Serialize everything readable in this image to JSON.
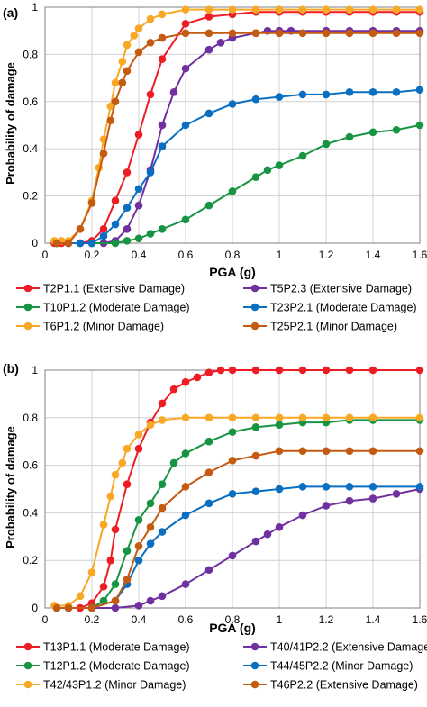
{
  "chart_data": [
    {
      "type": "line",
      "panel_label": "(a)",
      "xlabel": "PGA (g)",
      "ylabel": "Probability of damage",
      "xlim": [
        0,
        1.6
      ],
      "ylim": [
        0,
        1
      ],
      "x_ticks": [
        0,
        0.2,
        0.4,
        0.6,
        0.8,
        1,
        1.2,
        1.4,
        1.6
      ],
      "y_ticks": [
        0,
        0.2,
        0.4,
        0.6,
        0.8,
        1
      ],
      "grid": true,
      "legend_position": "bottom",
      "series": [
        {
          "name": "T2P1.1 (Extensive Damage)",
          "color": "#ee1c24",
          "x": [
            0.04,
            0.07,
            0.1,
            0.15,
            0.2,
            0.25,
            0.3,
            0.35,
            0.4,
            0.45,
            0.5,
            0.6,
            0.7,
            0.8,
            0.9,
            1.0,
            1.1,
            1.2,
            1.3,
            1.4,
            1.5,
            1.6
          ],
          "y": [
            0,
            0,
            0,
            0,
            0.01,
            0.06,
            0.18,
            0.3,
            0.46,
            0.63,
            0.78,
            0.93,
            0.96,
            0.97,
            0.98,
            0.98,
            0.98,
            0.98,
            0.98,
            0.98,
            0.98,
            0.98
          ]
        },
        {
          "name": "T5P2.3 (Extensive Damage)",
          "color": "#7030a0",
          "x": [
            0.05,
            0.1,
            0.15,
            0.2,
            0.25,
            0.3,
            0.35,
            0.4,
            0.45,
            0.5,
            0.55,
            0.6,
            0.7,
            0.75,
            0.8,
            0.9,
            0.95,
            1.0,
            1.05,
            1.2,
            1.3,
            1.4,
            1.5,
            1.6
          ],
          "y": [
            0,
            0,
            0,
            0,
            0,
            0.01,
            0.06,
            0.16,
            0.31,
            0.5,
            0.64,
            0.74,
            0.82,
            0.85,
            0.87,
            0.89,
            0.9,
            0.9,
            0.9,
            0.9,
            0.9,
            0.9,
            0.9,
            0.9
          ]
        },
        {
          "name": "T10P1.2 (Moderate Damage)",
          "color": "#179442",
          "x": [
            0.05,
            0.1,
            0.2,
            0.3,
            0.35,
            0.4,
            0.45,
            0.5,
            0.6,
            0.7,
            0.8,
            0.9,
            0.95,
            1.0,
            1.1,
            1.2,
            1.3,
            1.4,
            1.5,
            1.6
          ],
          "y": [
            0,
            0,
            0,
            0,
            0.01,
            0.02,
            0.04,
            0.06,
            0.1,
            0.16,
            0.22,
            0.28,
            0.31,
            0.33,
            0.37,
            0.42,
            0.45,
            0.47,
            0.48,
            0.5
          ]
        },
        {
          "name": "T23P2.1 (Moderate Damage)",
          "color": "#0b6fc1",
          "x": [
            0.05,
            0.1,
            0.15,
            0.2,
            0.25,
            0.3,
            0.35,
            0.4,
            0.45,
            0.5,
            0.6,
            0.7,
            0.8,
            0.9,
            1.0,
            1.1,
            1.2,
            1.3,
            1.4,
            1.5,
            1.6
          ],
          "y": [
            0,
            0,
            0,
            0,
            0.03,
            0.08,
            0.15,
            0.23,
            0.3,
            0.41,
            0.5,
            0.55,
            0.59,
            0.61,
            0.62,
            0.63,
            0.63,
            0.64,
            0.64,
            0.64,
            0.65
          ]
        },
        {
          "name": "T6P1.2 (Minor Damage)",
          "color": "#f9a825",
          "x": [
            0.04,
            0.07,
            0.1,
            0.15,
            0.2,
            0.23,
            0.25,
            0.28,
            0.3,
            0.33,
            0.35,
            0.38,
            0.4,
            0.45,
            0.5,
            0.6,
            0.7,
            0.8,
            0.9,
            1.0,
            1.1,
            1.2,
            1.3,
            1.4,
            1.5,
            1.6
          ],
          "y": [
            0.01,
            0.01,
            0.01,
            0.06,
            0.18,
            0.32,
            0.44,
            0.58,
            0.68,
            0.77,
            0.84,
            0.88,
            0.91,
            0.95,
            0.97,
            0.99,
            0.99,
            0.99,
            0.99,
            0.99,
            0.99,
            0.99,
            0.99,
            0.99,
            0.99,
            0.99
          ]
        },
        {
          "name": "T25P2.1 (Minor Damage)",
          "color": "#c55a11",
          "x": [
            0.05,
            0.1,
            0.15,
            0.2,
            0.25,
            0.28,
            0.3,
            0.33,
            0.35,
            0.4,
            0.45,
            0.5,
            0.6,
            0.7,
            0.8,
            0.9,
            1.0,
            1.1,
            1.2,
            1.3,
            1.4,
            1.5,
            1.6
          ],
          "y": [
            0,
            0,
            0.06,
            0.17,
            0.38,
            0.52,
            0.6,
            0.68,
            0.73,
            0.81,
            0.85,
            0.87,
            0.89,
            0.89,
            0.89,
            0.89,
            0.89,
            0.89,
            0.89,
            0.89,
            0.89,
            0.89,
            0.89
          ]
        }
      ]
    },
    {
      "type": "line",
      "panel_label": "(b)",
      "xlabel": "PGA (g)",
      "ylabel": "Probability of damage",
      "xlim": [
        0,
        1.6
      ],
      "ylim": [
        0,
        1
      ],
      "x_ticks": [
        0,
        0.2,
        0.4,
        0.6,
        0.8,
        1,
        1.2,
        1.4,
        1.6
      ],
      "y_ticks": [
        0,
        0.2,
        0.4,
        0.6,
        0.8,
        1
      ],
      "grid": true,
      "legend_position": "bottom",
      "series": [
        {
          "name": "T13P1.1 (Moderate Damage)",
          "color": "#ee1c24",
          "x": [
            0.05,
            0.1,
            0.15,
            0.2,
            0.25,
            0.28,
            0.3,
            0.35,
            0.4,
            0.45,
            0.5,
            0.55,
            0.6,
            0.65,
            0.7,
            0.75,
            0.8,
            0.9,
            1.0,
            1.1,
            1.2,
            1.3,
            1.4,
            1.6
          ],
          "y": [
            0,
            0,
            0,
            0.02,
            0.09,
            0.2,
            0.33,
            0.52,
            0.67,
            0.78,
            0.86,
            0.92,
            0.95,
            0.97,
            0.99,
            1,
            1,
            1,
            1,
            1,
            1,
            1,
            1,
            1
          ]
        },
        {
          "name": "T40/41P2.2 (Extensive Damage)",
          "color": "#7030a0",
          "x": [
            0.05,
            0.1,
            0.2,
            0.3,
            0.4,
            0.45,
            0.5,
            0.6,
            0.7,
            0.8,
            0.9,
            0.95,
            1.0,
            1.1,
            1.2,
            1.3,
            1.4,
            1.5,
            1.6
          ],
          "y": [
            0,
            0,
            0,
            0,
            0.01,
            0.03,
            0.05,
            0.1,
            0.16,
            0.22,
            0.28,
            0.31,
            0.34,
            0.39,
            0.43,
            0.45,
            0.46,
            0.48,
            0.5
          ]
        },
        {
          "name": "T12P1.2 (Moderate Damage)",
          "color": "#179442",
          "x": [
            0.05,
            0.1,
            0.2,
            0.25,
            0.3,
            0.35,
            0.4,
            0.45,
            0.5,
            0.55,
            0.6,
            0.7,
            0.8,
            0.9,
            1.0,
            1.1,
            1.2,
            1.3,
            1.4,
            1.6
          ],
          "y": [
            0,
            0,
            0,
            0.03,
            0.1,
            0.24,
            0.37,
            0.44,
            0.52,
            0.61,
            0.65,
            0.7,
            0.74,
            0.76,
            0.77,
            0.78,
            0.78,
            0.79,
            0.79,
            0.79
          ]
        },
        {
          "name": "T44/45P2.2 (Minor Damage)",
          "color": "#0b6fc1",
          "x": [
            0.05,
            0.1,
            0.2,
            0.3,
            0.35,
            0.4,
            0.45,
            0.5,
            0.6,
            0.7,
            0.8,
            0.9,
            1.0,
            1.1,
            1.2,
            1.3,
            1.4,
            1.6
          ],
          "y": [
            0,
            0,
            0,
            0.03,
            0.1,
            0.2,
            0.27,
            0.32,
            0.39,
            0.44,
            0.48,
            0.49,
            0.5,
            0.51,
            0.51,
            0.51,
            0.51,
            0.51
          ]
        },
        {
          "name": "T42/43P1.2 (Minor Damage)",
          "color": "#f9a825",
          "x": [
            0.04,
            0.1,
            0.15,
            0.2,
            0.25,
            0.28,
            0.3,
            0.33,
            0.35,
            0.4,
            0.45,
            0.5,
            0.6,
            0.7,
            0.8,
            0.9,
            1.0,
            1.1,
            1.2,
            1.3,
            1.4,
            1.6
          ],
          "y": [
            0.01,
            0.01,
            0.05,
            0.15,
            0.35,
            0.47,
            0.56,
            0.61,
            0.67,
            0.73,
            0.77,
            0.79,
            0.8,
            0.8,
            0.8,
            0.8,
            0.8,
            0.8,
            0.8,
            0.8,
            0.8,
            0.8
          ]
        },
        {
          "name": "T46P2.2 (Extensive Damage)",
          "color": "#c55a11",
          "x": [
            0.05,
            0.1,
            0.2,
            0.3,
            0.35,
            0.4,
            0.45,
            0.5,
            0.6,
            0.7,
            0.8,
            0.9,
            1.0,
            1.1,
            1.2,
            1.3,
            1.4,
            1.6
          ],
          "y": [
            0,
            0,
            0,
            0.03,
            0.12,
            0.26,
            0.34,
            0.42,
            0.51,
            0.57,
            0.62,
            0.64,
            0.66,
            0.66,
            0.66,
            0.66,
            0.66,
            0.66
          ]
        }
      ]
    }
  ]
}
